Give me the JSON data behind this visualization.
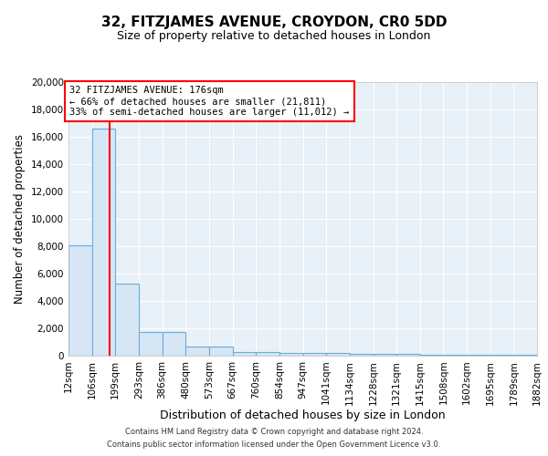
{
  "title": "32, FITZJAMES AVENUE, CROYDON, CR0 5DD",
  "subtitle": "Size of property relative to detached houses in London",
  "xlabel": "Distribution of detached houses by size in London",
  "ylabel": "Number of detached properties",
  "bin_edges": [
    12,
    106,
    199,
    293,
    386,
    480,
    573,
    667,
    760,
    854,
    947,
    1041,
    1134,
    1228,
    1321,
    1415,
    1508,
    1602,
    1695,
    1789,
    1882
  ],
  "bar_heights": [
    8100,
    16600,
    5300,
    1750,
    1750,
    700,
    700,
    300,
    250,
    220,
    200,
    170,
    150,
    130,
    110,
    100,
    90,
    80,
    70,
    60
  ],
  "bar_facecolor": "#d6e6f5",
  "bar_edgecolor": "#6aaed6",
  "property_line_x": 176,
  "property_line_color": "red",
  "annotation_title": "32 FITZJAMES AVENUE: 176sqm",
  "annotation_line1": "← 66% of detached houses are smaller (21,811)",
  "annotation_line2": "33% of semi-detached houses are larger (11,012) →",
  "annotation_box_edgecolor": "red",
  "ylim": [
    0,
    20000
  ],
  "yticks": [
    0,
    2000,
    4000,
    6000,
    8000,
    10000,
    12000,
    14000,
    16000,
    18000,
    20000
  ],
  "background_color": "#e8f0f8",
  "footer_line1": "Contains HM Land Registry data © Crown copyright and database right 2024.",
  "footer_line2": "Contains public sector information licensed under the Open Government Licence v3.0."
}
